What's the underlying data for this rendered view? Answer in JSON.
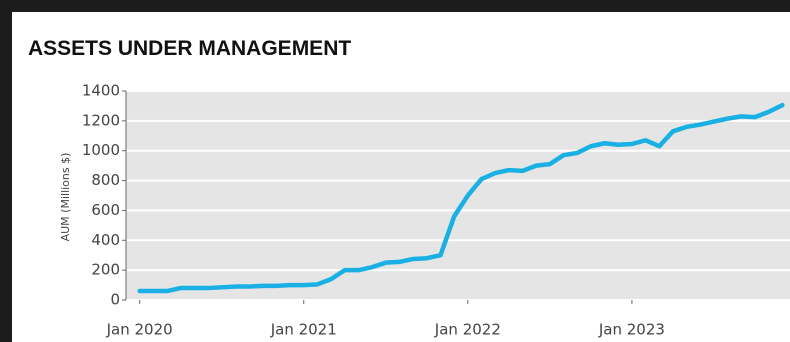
{
  "chart_data": {
    "type": "line",
    "title": "ASSETS UNDER MANAGEMENT",
    "y_label": "AUM (Millions $)",
    "x": [
      "2020-01",
      "2020-02",
      "2020-03",
      "2020-04",
      "2020-05",
      "2020-06",
      "2020-07",
      "2020-08",
      "2020-09",
      "2020-10",
      "2020-11",
      "2020-12",
      "2021-01",
      "2021-02",
      "2021-03",
      "2021-04",
      "2021-05",
      "2021-06",
      "2021-07",
      "2021-08",
      "2021-09",
      "2021-10",
      "2021-11",
      "2021-12",
      "2022-01",
      "2022-02",
      "2022-03",
      "2022-04",
      "2022-05",
      "2022-06",
      "2022-07",
      "2022-08",
      "2022-09",
      "2022-10",
      "2022-11",
      "2022-12",
      "2023-01",
      "2023-02",
      "2023-03",
      "2023-04",
      "2023-05",
      "2023-06",
      "2023-07",
      "2023-08",
      "2023-09",
      "2023-10",
      "2023-11",
      "2023-12"
    ],
    "series": [
      {
        "name": "AUM",
        "color": "#1ab0e3",
        "values": [
          60,
          60,
          60,
          80,
          80,
          80,
          85,
          90,
          90,
          95,
          95,
          100,
          100,
          105,
          140,
          200,
          200,
          220,
          250,
          255,
          275,
          280,
          300,
          560,
          700,
          810,
          850,
          870,
          865,
          900,
          910,
          970,
          985,
          1030,
          1050,
          1040,
          1045,
          1070,
          1030,
          1130,
          1160,
          1175,
          1195,
          1215,
          1230,
          1225,
          1260,
          1305
        ]
      }
    ],
    "xlim": [
      "2019-12",
      "2024-01"
    ],
    "xticks": [
      {
        "value": "2020-01",
        "label": "Jan 2020"
      },
      {
        "value": "2021-01",
        "label": "Jan 2021"
      },
      {
        "value": "2022-01",
        "label": "Jan 2022"
      },
      {
        "value": "2023-01",
        "label": "Jan 2023"
      }
    ],
    "ylim": [
      0,
      1400
    ],
    "yticks": [
      0,
      200,
      400,
      600,
      800,
      1000,
      1200,
      1400
    ],
    "grid": true
  }
}
